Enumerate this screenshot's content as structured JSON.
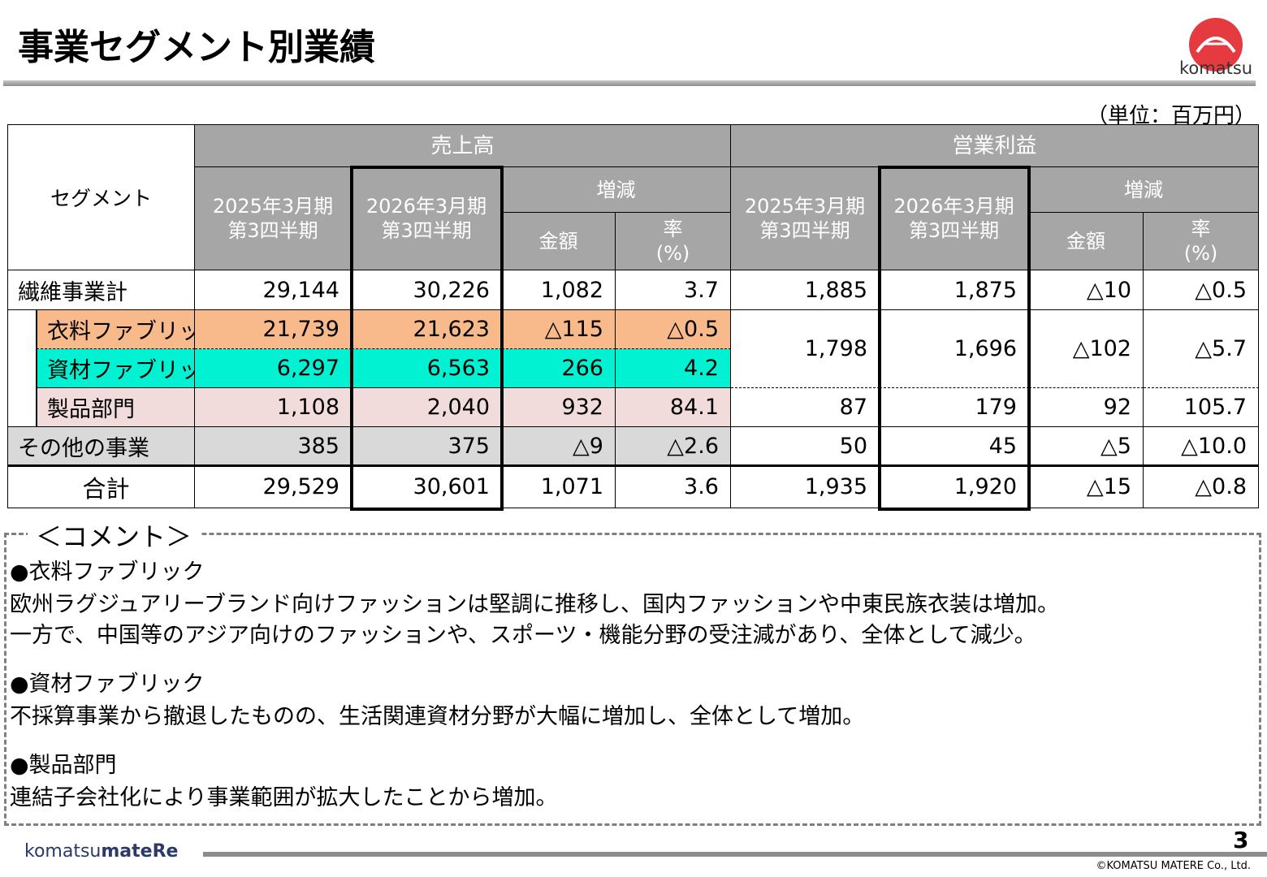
{
  "header": {
    "title": "事業セグメント別業績",
    "logo": "komatsu"
  },
  "unit": "（単位：百万円）",
  "table": {
    "segment_header": "セグメント",
    "groups": [
      "売上高",
      "営業利益"
    ],
    "period_labels": [
      [
        "2025年3月期",
        "第3四半期"
      ],
      [
        "2026年3月期",
        "第3四半期"
      ]
    ],
    "change_label": "増減",
    "amount_label": "金額",
    "rate_label": [
      "率",
      "(%)"
    ],
    "rows": [
      {
        "label": "繊維事業計",
        "sales": [
          "29,144",
          "30,226",
          "1,082",
          "3.7"
        ],
        "profit": [
          "1,885",
          "1,875",
          "△10",
          "△0.5"
        ]
      },
      {
        "label": "衣料ファブリック",
        "sales": [
          "21,739",
          "21,623",
          "△115",
          "△0.5"
        ],
        "profit": [
          "1,798",
          "1,696",
          "△102",
          "△5.7"
        ]
      },
      {
        "label": "資材ファブリック",
        "sales": [
          "6,297",
          "6,563",
          "266",
          "4.2"
        ]
      },
      {
        "label": "製品部門",
        "sales": [
          "1,108",
          "2,040",
          "932",
          "84.1"
        ],
        "profit": [
          "87",
          "179",
          "92",
          "105.7"
        ]
      },
      {
        "label": "その他の事業",
        "sales": [
          "385",
          "375",
          "△9",
          "△2.6"
        ],
        "profit": [
          "50",
          "45",
          "△5",
          "△10.0"
        ]
      },
      {
        "label": "合計",
        "sales": [
          "29,529",
          "30,601",
          "1,071",
          "3.6"
        ],
        "profit": [
          "1,935",
          "1,920",
          "△15",
          "△0.8"
        ]
      }
    ]
  },
  "comments": {
    "title": "＜コメント＞",
    "sections": [
      {
        "heading": "●衣料ファブリック",
        "lines": [
          "欧州ラグジュアリーブランド向けファッションは堅調に推移し、国内ファッションや中東民族衣装は増加。",
          "一方で、中国等のアジア向けのファッションや、スポーツ・機能分野の受注減があり、全体として減少。"
        ]
      },
      {
        "heading": "●資材ファブリック",
        "lines": [
          "不採算事業から撤退したものの、生活関連資材分野が大幅に増加し、全体として増加。"
        ]
      },
      {
        "heading": "●製品部門",
        "lines": [
          "連結子会社化により事業範囲が拡大したことから増加。"
        ]
      }
    ]
  },
  "footer": {
    "brand": [
      "komatsu",
      "mateRe"
    ],
    "page": "3",
    "copyright": "©KOMATSU MATERE Co., Ltd."
  }
}
